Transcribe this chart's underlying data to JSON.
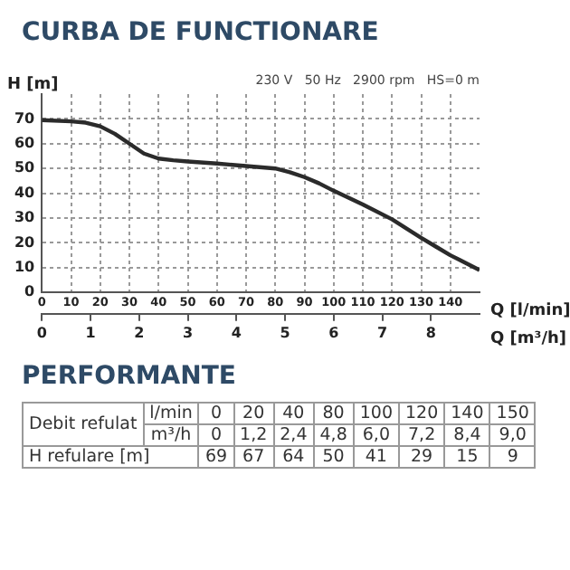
{
  "chart_data": [
    {
      "type": "line",
      "title": "CURBA DE FUNCTIONARE",
      "xlabel": "Q [l/min]",
      "x2label": "Q [m³/h]",
      "ylabel": "H [m]",
      "annotations": [
        "230 V   50 Hz   2900 rpm   HS=0 m"
      ],
      "xlim": [
        0,
        150
      ],
      "xticks": [
        0,
        10,
        20,
        30,
        40,
        50,
        60,
        70,
        80,
        90,
        100,
        110,
        120,
        130,
        140
      ],
      "x2lim": [
        0,
        9
      ],
      "x2ticks": [
        0,
        1,
        2,
        3,
        4,
        5,
        6,
        7,
        8
      ],
      "ylim": [
        0,
        80
      ],
      "yticks": [
        0,
        10,
        20,
        30,
        40,
        50,
        60,
        70
      ],
      "grid": true,
      "legend": false,
      "marker": "none",
      "line_style": "solid",
      "series": [
        {
          "color": "#2b2b2b",
          "x": [
            0,
            10,
            15,
            20,
            25,
            30,
            35,
            40,
            45,
            50,
            60,
            70,
            80,
            85,
            90,
            95,
            100,
            110,
            120,
            130,
            135,
            140,
            150
          ],
          "values": [
            69.5,
            69,
            68.5,
            67,
            64,
            60,
            56,
            54,
            53.3,
            52.8,
            52,
            51,
            50,
            48.5,
            46.5,
            44,
            41,
            35.5,
            29.5,
            22,
            18.5,
            15,
            9
          ]
        }
      ]
    },
    {
      "type": "other",
      "title": "PERFORMANTE",
      "annotations": [
        "Debit refulat",
        "l/min"
      ],
      "categories": [
        "0",
        "20",
        "40",
        "80",
        "100",
        "120",
        "140",
        "150"
      ],
      "series": [
        {
          "name": "m³/h",
          "values": [
            0,
            1.2,
            2.4,
            4.8,
            6.0,
            7.2,
            8.4,
            9.0
          ],
          "value_labels": [
            "0",
            "1,2",
            "2,4",
            "4,8",
            "6,0",
            "7,2",
            "8,4",
            "9,0"
          ]
        },
        {
          "name": "H refulare [m]",
          "values": [
            69,
            67,
            64,
            50,
            41,
            29,
            15,
            9
          ],
          "value_labels": [
            "69",
            "67",
            "64",
            "50",
            "41",
            "29",
            "15",
            "9"
          ]
        }
      ]
    }
  ]
}
